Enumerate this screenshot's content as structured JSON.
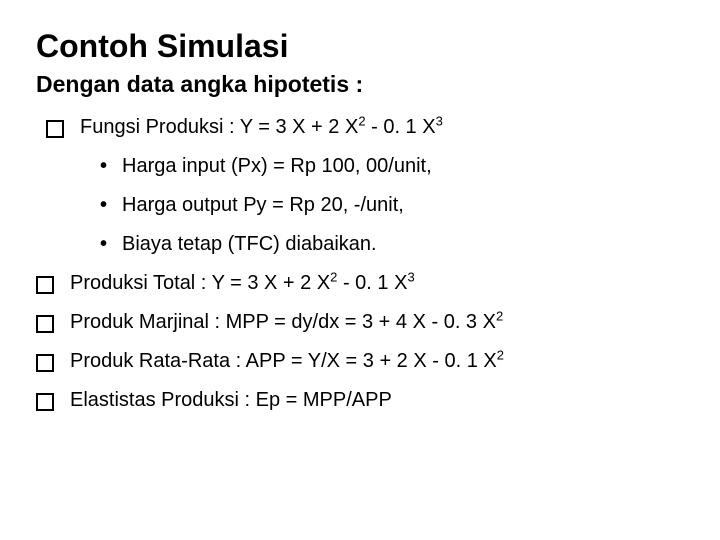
{
  "title": "Contoh  Simulasi",
  "subtitle": "Dengan data angka hipotetis  :",
  "line1_pre": "Fungsi Produksi  : Y  = 3 X + 2 X",
  "line1_mid": " - 0. 1 X",
  "sup2": "2",
  "sup3": "3",
  "sub1": "Harga input (Px) = Rp 100, 00/unit,",
  "sub2": "Harga output  Py =   Rp 20, -/unit,",
  "sub3": "Biaya tetap  (TFC) diabaikan.",
  "line2_pre": "Produksi Total  :  Y        =   3 X + 2 X",
  "line2_mid": " - 0. 1 X",
  "line3_pre": "Produk Marjinal  : MPP    =   dy/dx  = 3 + 4 X - 0. 3 X",
  "line4_pre": "Produk Rata-Rata :  APP   =   Y/X  = 3 + 2 X - 0. 1 X",
  "line5": "Elastistas Produksi :  Ep      =   MPP/APP"
}
